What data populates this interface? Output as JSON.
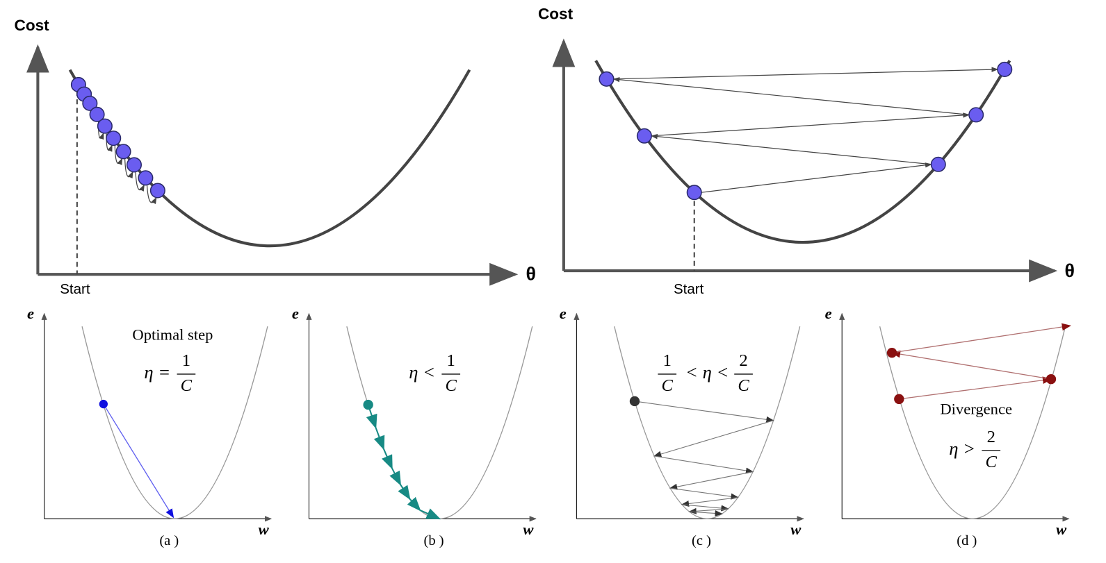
{
  "top_panels": [
    {
      "y_label": "Cost",
      "x_label": "θ",
      "start_label": "Start"
    },
    {
      "y_label": "Cost",
      "x_label": "θ",
      "start_label": "Start"
    }
  ],
  "bottom_panels": [
    {
      "y_label": "e",
      "x_label": "w",
      "caption": "(a )",
      "title": "Optimal step",
      "formula": {
        "left": "η =",
        "num": "1",
        "den": "C"
      }
    },
    {
      "y_label": "e",
      "x_label": "w",
      "caption": "(b )",
      "formula": {
        "left": "η <",
        "num": "1",
        "den": "C"
      }
    },
    {
      "y_label": "e",
      "x_label": "w",
      "caption": "(c )",
      "formula": {
        "num1": "1",
        "den1": "C",
        "middle": "< η <",
        "num2": "2",
        "den2": "C"
      }
    },
    {
      "y_label": "e",
      "x_label": "w",
      "caption": "(d )",
      "title": "Divergence",
      "formula": {
        "left": "η >",
        "num": "2",
        "den": "C"
      }
    }
  ]
}
